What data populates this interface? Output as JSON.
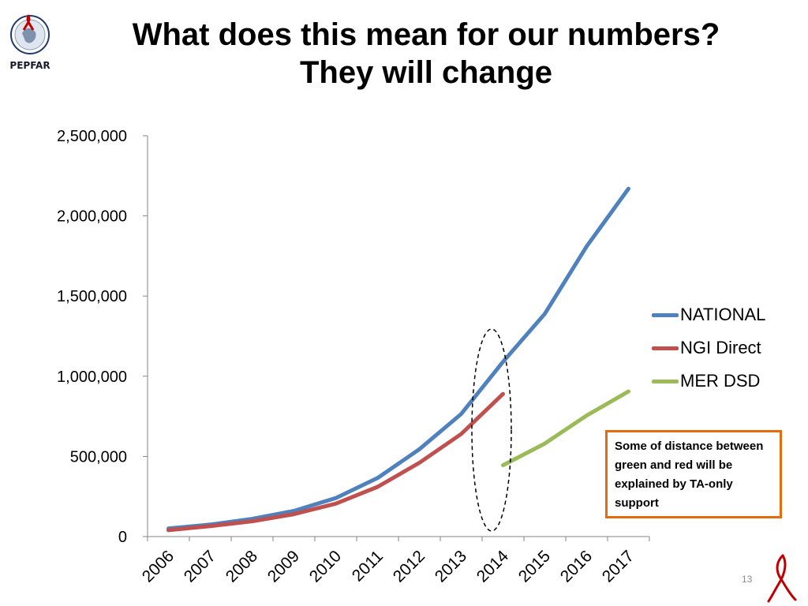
{
  "logo": {
    "text": "PEPFAR",
    "icon": "pepfar-seal-icon"
  },
  "title": {
    "line1": "What does this mean for our numbers?",
    "line2": "They will change"
  },
  "chart_data": {
    "type": "line",
    "categories": [
      "2006",
      "2007",
      "2008",
      "2009",
      "2010",
      "2011",
      "2012",
      "2013",
      "2014",
      "2015",
      "2016",
      "2017"
    ],
    "ylim": [
      0,
      2500000
    ],
    "yticks": [
      0,
      500000,
      1000000,
      1500000,
      2000000,
      2500000
    ],
    "ytick_labels": [
      "0",
      "500,000",
      "1,000,000",
      "1,500,000",
      "2,000,000",
      "2,500,000"
    ],
    "grid": false,
    "legend_position": "right",
    "series": [
      {
        "name": "NATIONAL",
        "color": "#4f81bd",
        "values": [
          50000,
          75000,
          110000,
          160000,
          240000,
          365000,
          545000,
          765000,
          1090000,
          1390000,
          1810000,
          2170000
        ]
      },
      {
        "name": "NGI Direct",
        "color": "#c0504d",
        "values": [
          40000,
          65000,
          95000,
          140000,
          205000,
          310000,
          460000,
          640000,
          890000,
          null,
          null,
          null
        ]
      },
      {
        "name": "MER DSD",
        "color": "#9bbb59",
        "values": [
          null,
          null,
          null,
          null,
          null,
          null,
          null,
          null,
          445000,
          580000,
          755000,
          905000
        ]
      }
    ],
    "annotation": "Some of distance between green and red will be explained by TA-only support"
  },
  "colors": {
    "note_border": "#e46c0a",
    "axis": "#868686",
    "ribbon": "#c00000"
  },
  "page_number": "13",
  "ribbon_icon": "red-ribbon-icon"
}
